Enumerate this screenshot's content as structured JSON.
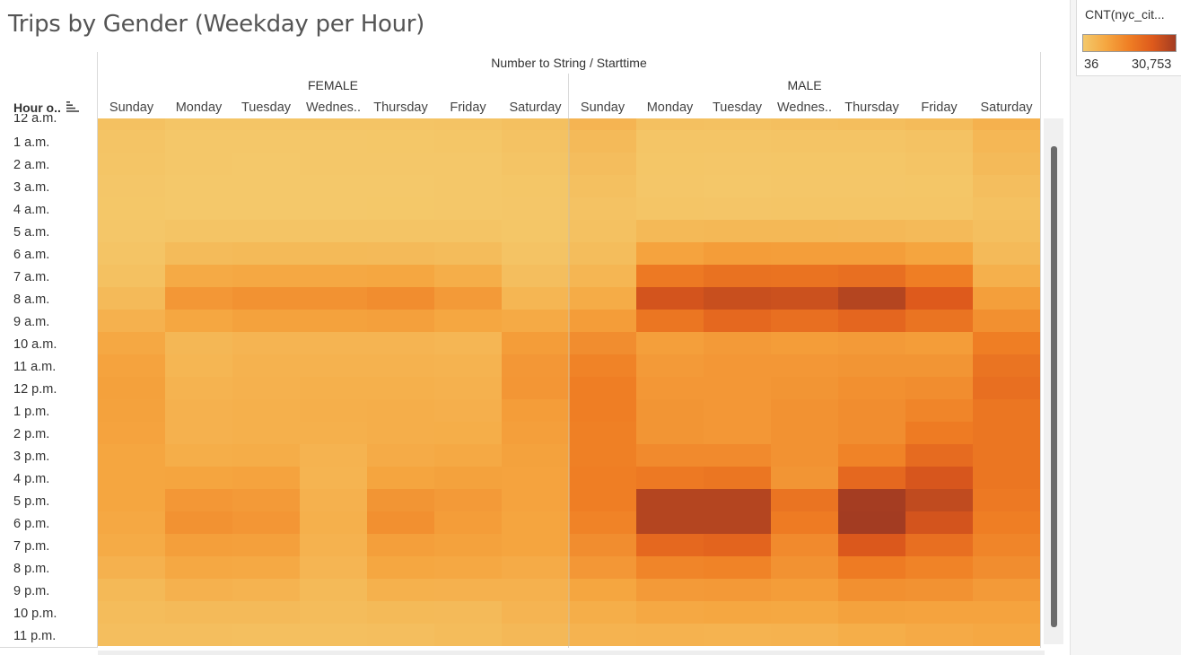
{
  "title": "Trips by Gender (Weekday per Hour)",
  "column_super_header": "Number to String / Starttime",
  "row_header": "Hour o..",
  "legend": {
    "title": "CNT(nyc_cit...",
    "min_label": "36",
    "max_label": "30,753",
    "colors": [
      "#f4c86a",
      "#f5a640",
      "#ef7e24",
      "#de5a1c",
      "#a33c22"
    ]
  },
  "chart_data": {
    "type": "heatmap",
    "title": "Trips by Gender (Weekday per Hour)",
    "column_label": "Number to String / Starttime",
    "row_label": "Hour o..",
    "groups": [
      "FEMALE",
      "MALE"
    ],
    "days": [
      "Sunday",
      "Monday",
      "Tuesday",
      "Wednes..",
      "Thursday",
      "Friday",
      "Saturday"
    ],
    "hours": [
      "12 a.m.",
      "1 a.m.",
      "2 a.m.",
      "3 a.m.",
      "4 a.m.",
      "5 a.m.",
      "6 a.m.",
      "7 a.m.",
      "8 a.m.",
      "9 a.m.",
      "10 a.m.",
      "11 a.m.",
      "12 p.m.",
      "1 p.m.",
      "2 p.m.",
      "3 p.m.",
      "4 p.m.",
      "5 p.m.",
      "6 p.m.",
      "7 p.m.",
      "8 p.m.",
      "9 p.m.",
      "10 p.m.",
      "11 p.m."
    ],
    "color_range": [
      36,
      30753
    ],
    "values": [
      [
        1700,
        800,
        700,
        900,
        1000,
        1200,
        1800,
        4500,
        1800,
        1700,
        2000,
        2400,
        3000,
        5200
      ],
      [
        1000,
        300,
        250,
        300,
        350,
        500,
        1300,
        3200,
        800,
        700,
        900,
        1000,
        1300,
        3900
      ],
      [
        700,
        150,
        120,
        150,
        200,
        300,
        900,
        2500,
        500,
        400,
        500,
        600,
        900,
        3100
      ],
      [
        450,
        100,
        90,
        100,
        120,
        200,
        600,
        1800,
        400,
        300,
        400,
        450,
        600,
        2200
      ],
      [
        350,
        120,
        110,
        120,
        130,
        170,
        450,
        1400,
        700,
        650,
        700,
        700,
        700,
        1700
      ],
      [
        450,
        900,
        950,
        950,
        950,
        900,
        600,
        1700,
        3500,
        3700,
        3700,
        3600,
        3200,
        2100
      ],
      [
        900,
        3000,
        3300,
        3300,
        3200,
        2800,
        1100,
        2600,
        8200,
        9500,
        9300,
        9300,
        8000,
        3200
      ],
      [
        1700,
        6800,
        7200,
        7200,
        7500,
        6000,
        2300,
        4200,
        16500,
        18000,
        17800,
        18500,
        15500,
        5500
      ],
      [
        3100,
        10500,
        11500,
        11500,
        12500,
        10000,
        4200,
        6400,
        24500,
        26000,
        25500,
        28500,
        23000,
        9000
      ],
      [
        5200,
        7500,
        8500,
        8500,
        8800,
        7500,
        6800,
        9500,
        17000,
        20000,
        18500,
        20500,
        17500,
        12000
      ],
      [
        7200,
        3800,
        4500,
        4500,
        4500,
        4000,
        9500,
        12500,
        9000,
        10000,
        9500,
        10000,
        9500,
        15500
      ],
      [
        8200,
        4200,
        5000,
        5000,
        5000,
        4800,
        10500,
        14500,
        10000,
        10500,
        10500,
        11000,
        11000,
        17500
      ],
      [
        8700,
        4800,
        5200,
        5500,
        5500,
        5200,
        10800,
        15500,
        10500,
        10500,
        11000,
        12000,
        12500,
        18500
      ],
      [
        8500,
        5200,
        5500,
        5700,
        5800,
        5600,
        9500,
        15500,
        11000,
        10500,
        11500,
        12500,
        14000,
        17000
      ],
      [
        8200,
        5200,
        5500,
        5500,
        5800,
        6000,
        9000,
        15000,
        11000,
        10500,
        11500,
        12500,
        16000,
        17000
      ],
      [
        7700,
        6000,
        6200,
        4700,
        6500,
        7000,
        8500,
        15000,
        13000,
        13000,
        11500,
        14500,
        19500,
        17000
      ],
      [
        7700,
        8000,
        8300,
        4600,
        8000,
        8500,
        8300,
        15500,
        16500,
        17000,
        11000,
        20000,
        24000,
        17000
      ],
      [
        7700,
        10500,
        10000,
        5200,
        11000,
        10000,
        8300,
        15500,
        28500,
        28500,
        17500,
        30500,
        27000,
        16500
      ],
      [
        7200,
        11500,
        10800,
        5500,
        12000,
        9500,
        8000,
        14500,
        28500,
        28500,
        16000,
        30700,
        24500,
        15500
      ],
      [
        6600,
        9000,
        8800,
        5000,
        9000,
        8500,
        8000,
        12500,
        20000,
        21000,
        13000,
        23500,
        18500,
        14000
      ],
      [
        5200,
        7200,
        7000,
        4300,
        7500,
        7200,
        6500,
        10500,
        14000,
        14500,
        11500,
        16000,
        14500,
        12500
      ],
      [
        3500,
        5200,
        4800,
        3300,
        5300,
        5200,
        5200,
        7800,
        10000,
        10200,
        9500,
        12000,
        11500,
        10000
      ],
      [
        2800,
        3100,
        3200,
        2800,
        3300,
        3200,
        4500,
        6000,
        7200,
        7500,
        7300,
        8500,
        8200,
        8200
      ],
      [
        2200,
        2200,
        2000,
        2000,
        2200,
        2700,
        3600,
        4800,
        4900,
        4800,
        4900,
        6000,
        6700,
        7200
      ]
    ]
  }
}
